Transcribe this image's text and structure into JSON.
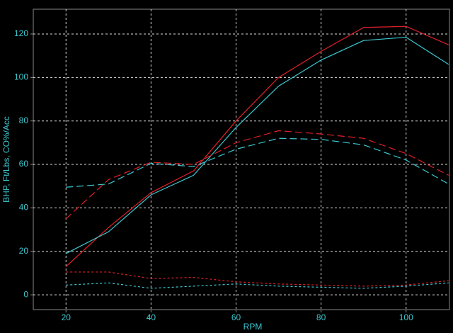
{
  "chart_data": {
    "type": "line",
    "x_label": "RPM",
    "y_label": "BHP, Ft/Lbs, CO%/Acc",
    "x": [
      20,
      30,
      40,
      50,
      60,
      70,
      80,
      90,
      100,
      110
    ],
    "series": [
      {
        "color": "#e0202a",
        "style": "solid",
        "values": [
          13,
          31,
          47,
          57,
          80,
          100,
          112,
          123,
          123.5,
          115
        ]
      },
      {
        "color": "#3cc8d0",
        "style": "solid",
        "values": [
          19,
          29,
          46,
          55,
          77,
          96,
          108,
          117,
          118.5,
          106
        ]
      },
      {
        "color": "#e0202a",
        "style": "dashed",
        "values": [
          35,
          53,
          61,
          60,
          70,
          75.5,
          74,
          72,
          65,
          55
        ]
      },
      {
        "color": "#3cc8d0",
        "style": "dashed",
        "values": [
          49.5,
          51,
          60.5,
          59,
          67,
          72,
          71.5,
          69,
          62,
          51
        ]
      },
      {
        "color": "#e0202a",
        "style": "dotted",
        "values": [
          10.5,
          10.5,
          7.5,
          8,
          6,
          5,
          4.5,
          4,
          4.5,
          6.5
        ]
      },
      {
        "color": "#3cc8d0",
        "style": "dotted",
        "values": [
          4.5,
          5.5,
          3,
          4,
          5,
          4,
          3.5,
          3,
          4,
          5.5
        ]
      }
    ],
    "xlim": [
      12.3,
      110.2
    ],
    "ylim": [
      -6.8,
      131.4
    ],
    "xticks": [
      20,
      40,
      60,
      80,
      100
    ],
    "yticks": [
      0,
      20,
      40,
      60,
      80,
      100,
      120
    ],
    "grid": true
  }
}
